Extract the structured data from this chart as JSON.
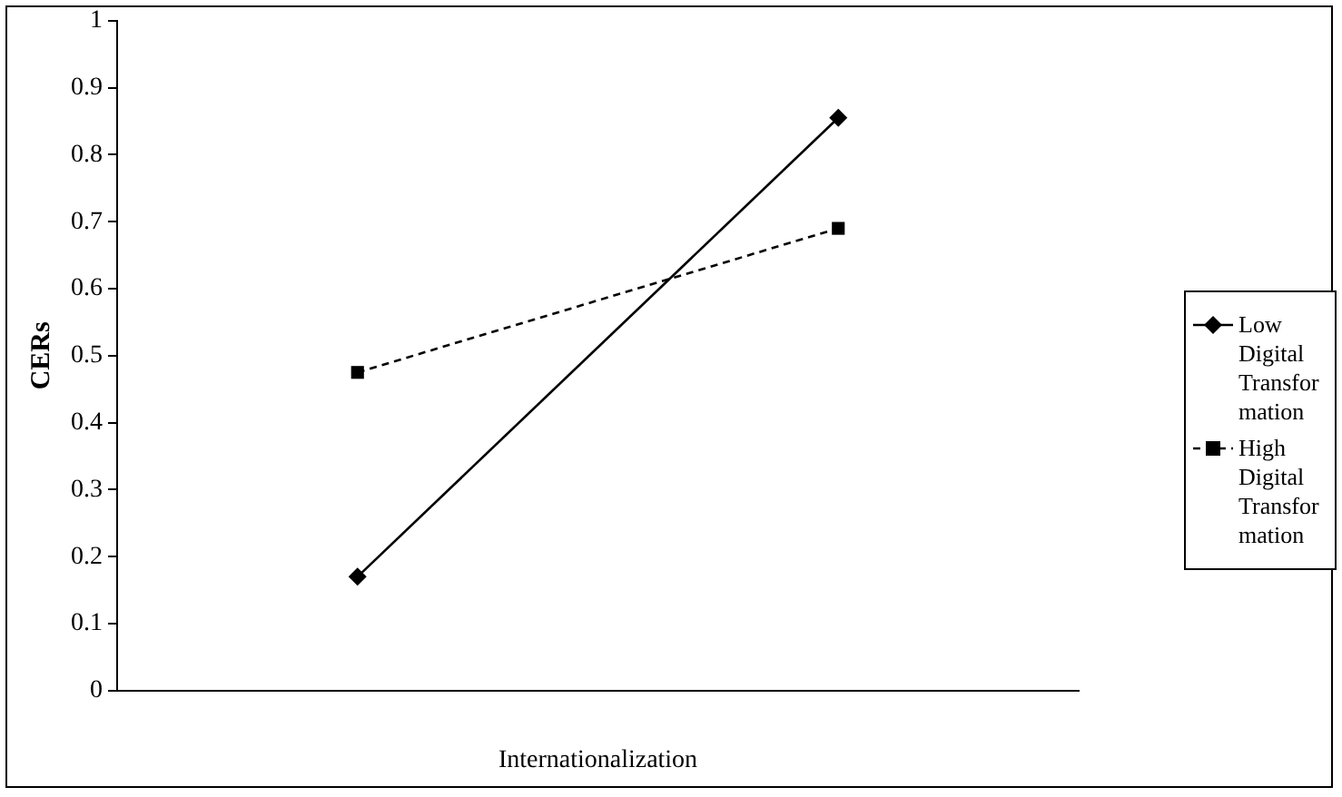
{
  "chart_data": {
    "type": "line",
    "ylabel": "CERs",
    "xlabel": "Internationalization",
    "categories": [
      null,
      null
    ],
    "series": [
      {
        "name": "Low Digital Transformation",
        "color": "#000000",
        "values": [
          0.17,
          0.855
        ],
        "marker": "diamond",
        "line_style": "solid"
      },
      {
        "name": "High Digital Transformation",
        "color": "#000000",
        "values": [
          0.475,
          0.69
        ],
        "marker": "square",
        "line_style": "dashed"
      }
    ],
    "ylim": [
      0,
      1
    ],
    "yticks": [
      0,
      0.1,
      0.2,
      0.3,
      0.4,
      0.5,
      0.6,
      0.7,
      0.8,
      0.9,
      1
    ],
    "grid": false,
    "legend": "right"
  }
}
